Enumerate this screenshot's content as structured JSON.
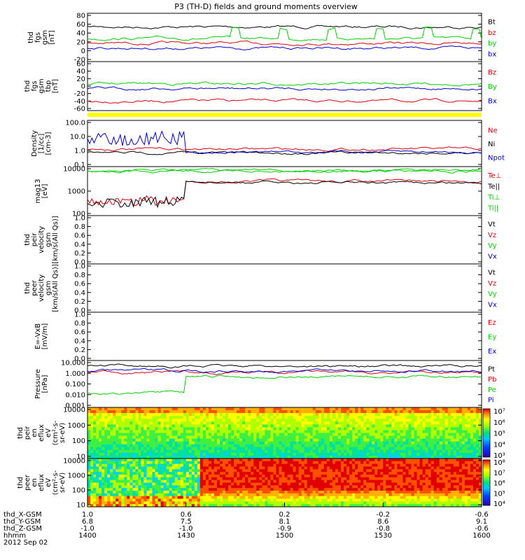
{
  "title": "P3 (TH-D) fields and ground moments overview",
  "date_label": "2012 Sep 02",
  "colors": {
    "black": "#000000",
    "red": "#e0000c",
    "green": "#00d000",
    "blue": "#0000d0",
    "yellow": "#ffff00"
  },
  "chart_data": [
    {
      "type": "line",
      "id": "fgs_gsm",
      "ylabel": [
        "thd",
        "fgs",
        "gsm",
        "[nT]"
      ],
      "yticks": [
        "80",
        "60",
        "40",
        "20",
        "0",
        "-20"
      ],
      "ylim": [
        -20,
        80
      ],
      "series": [
        {
          "name": "Bt",
          "color": "black"
        },
        {
          "name": "bz",
          "color": "red"
        },
        {
          "name": "by",
          "color": "green"
        },
        {
          "name": "bx",
          "color": "blue"
        }
      ]
    },
    {
      "type": "line",
      "id": "fgs_sm",
      "ylabel": [
        "thd",
        "fgs",
        "gsm",
        "tbp",
        "[nT]"
      ],
      "yticks": [
        "60",
        "40",
        "20",
        "0",
        "-20",
        "-40",
        "-60"
      ],
      "ylim": [
        -70,
        60
      ],
      "series": [
        {
          "name": "Bz",
          "color": "red"
        },
        {
          "name": "By",
          "color": "green"
        },
        {
          "name": "Bx",
          "color": "blue"
        }
      ]
    },
    {
      "type": "line",
      "id": "density",
      "ylabel": [
        "Density",
        "[1/cc]",
        "[cm-3]"
      ],
      "yticks": [
        "100.0",
        "10.0",
        "1.0",
        "0.1"
      ],
      "ylim": [
        0.1,
        100
      ],
      "series": [
        {
          "name": "Ne",
          "color": "red"
        },
        {
          "name": "Ni",
          "color": "black"
        },
        {
          "name": "Npot",
          "color": "blue"
        }
      ]
    },
    {
      "type": "line",
      "id": "temperature",
      "ylabel": [
        "mag13",
        "[eV]"
      ],
      "yticks": [
        "10000",
        "1000",
        "100"
      ],
      "ylim": [
        50,
        10000
      ],
      "series": [
        {
          "name": "Te⊥",
          "color": "red"
        },
        {
          "name": "Te||",
          "color": "black"
        },
        {
          "name": "Ti⊥",
          "color": "green"
        },
        {
          "name": "Ti||",
          "color": "green"
        }
      ]
    },
    {
      "type": "line",
      "id": "peir_velocity",
      "ylabel": [
        "thd",
        "peir",
        "velocity",
        "gsm",
        "[km/s(All Qs)]"
      ],
      "yticks": [
        "1.0",
        "0.8",
        "0.6",
        "0.4",
        "0.2",
        "0.0"
      ],
      "ylim": [
        0,
        1
      ],
      "series": [
        {
          "name": "Vt",
          "color": "black"
        },
        {
          "name": "Vz",
          "color": "red"
        },
        {
          "name": "Vy",
          "color": "green"
        },
        {
          "name": "Vx",
          "color": "blue"
        }
      ]
    },
    {
      "type": "line",
      "id": "peer_velocity",
      "ylabel": [
        "thd",
        "peer",
        "velocity",
        "gsm",
        "[km/s(All Qs)]"
      ],
      "yticks": [
        "1.0",
        "0.8",
        "0.6",
        "0.4",
        "0.2",
        "0.0"
      ],
      "ylim": [
        0,
        1
      ],
      "series": [
        {
          "name": "Vt",
          "color": "black"
        },
        {
          "name": "Vz",
          "color": "red"
        },
        {
          "name": "Vy",
          "color": "green"
        },
        {
          "name": "Vx",
          "color": "blue"
        }
      ]
    },
    {
      "type": "line",
      "id": "e_vxb",
      "ylabel": [
        "E=-VxB",
        "[mV/m]"
      ],
      "yticks": [
        "1.0",
        "0.8",
        "0.6",
        "0.4",
        "0.2",
        "0.0"
      ],
      "ylim": [
        0,
        1
      ],
      "series": [
        {
          "name": "Ez",
          "color": "red"
        },
        {
          "name": "Ey",
          "color": "green"
        },
        {
          "name": "Ex",
          "color": "blue"
        }
      ]
    },
    {
      "type": "line",
      "id": "pressure",
      "ylabel": [
        "Pressure",
        "[nPa]"
      ],
      "yticks": [
        "10.000",
        "1.000",
        "0.100",
        "0.010",
        "0.001"
      ],
      "ylim": [
        0.001,
        10
      ],
      "series": [
        {
          "name": "Pt",
          "color": "black"
        },
        {
          "name": "Pb",
          "color": "red"
        },
        {
          "name": "Pe",
          "color": "green"
        },
        {
          "name": "Pi",
          "color": "blue"
        }
      ]
    },
    {
      "type": "heatmap",
      "id": "peir_spec",
      "ylabel": [
        "thd",
        "peir",
        "en",
        "eflux",
        "eV",
        "(cm²-s-",
        "sr-eV)"
      ],
      "yticks": [
        "10000",
        "1000",
        "100",
        "10"
      ],
      "colorbar": [
        "10⁷",
        "10⁶",
        "10⁵",
        "10⁴",
        "10³"
      ]
    },
    {
      "type": "heatmap",
      "id": "peer_spec",
      "ylabel": [
        "thd",
        "peer",
        "en",
        "eflux",
        "eV",
        "(cm²-s-",
        "sr-eV)"
      ],
      "yticks": [
        "10000",
        "1000",
        "100",
        "10"
      ],
      "colorbar": [
        "10⁸",
        "10⁷",
        "10⁶",
        "10⁵",
        "10⁴"
      ]
    }
  ],
  "xaxis": {
    "rows": [
      {
        "label": "thd_X-GSM",
        "values": [
          "1.0",
          "0.6",
          "0.2",
          "-0.2",
          "-0.6"
        ]
      },
      {
        "label": "thd_Y-GSM",
        "values": [
          "6.8",
          "7.5",
          "8.1",
          "8.6",
          "9.1"
        ]
      },
      {
        "label": "thd_Z-GSM",
        "values": [
          "-1.0",
          "-1.0",
          "-0.9",
          "-0.8",
          "-0.6"
        ]
      },
      {
        "label": "hhmm",
        "values": [
          "1400",
          "1430",
          "1500",
          "1530",
          "1600"
        ]
      }
    ]
  }
}
